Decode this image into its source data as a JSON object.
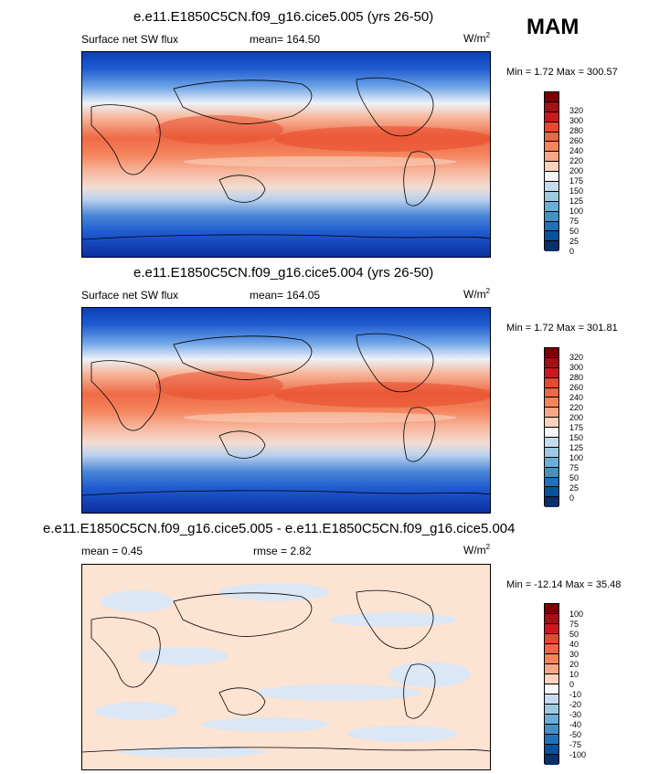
{
  "season": "MAM",
  "panels": [
    {
      "title": "e.e11.E1850C5CN.f09_g16.cice5.005 (yrs 26-50)",
      "variable": "Surface net SW flux",
      "stat": "mean= 164.50",
      "units": "W/m",
      "units_sup": "2",
      "minmax": "Min =   1.72 Max = 300.57",
      "colorbar_labels": [
        "320",
        "300",
        "280",
        "260",
        "240",
        "220",
        "200",
        "175",
        "150",
        "125",
        "100",
        "75",
        "50",
        "25",
        "0"
      ]
    },
    {
      "title": "e.e11.E1850C5CN.f09_g16.cice5.004 (yrs 26-50)",
      "variable": "Surface net SW flux",
      "stat": "mean= 164.05",
      "units": "W/m",
      "units_sup": "2",
      "minmax": "Min =   1.72 Max = 301.81",
      "colorbar_labels": [
        "320",
        "300",
        "280",
        "260",
        "240",
        "220",
        "200",
        "175",
        "150",
        "125",
        "100",
        "75",
        "50",
        "25",
        "0"
      ]
    },
    {
      "title": "e.e11.E1850C5CN.f09_g16.cice5.005 - e.e11.E1850C5CN.f09_g16.cice5.004",
      "stat": "mean =   0.45",
      "rmse": "rmse =   2.82",
      "units": "W/m",
      "units_sup": "2",
      "minmax": "Min = -12.14 Max =  35.48",
      "colorbar_labels": [
        "100",
        "75",
        "50",
        "40",
        "30",
        "20",
        "10",
        "0",
        "-10",
        "-20",
        "-30",
        "-40",
        "-50",
        "-75",
        "-100"
      ]
    }
  ],
  "colors": {
    "scale_top_to_bottom": [
      "#7f0000",
      "#a50f15",
      "#cb181d",
      "#e34a33",
      "#ef6548",
      "#f4845c",
      "#f7a787",
      "#fbd3bf",
      "#f7f7f7",
      "#c6dbef",
      "#9ecae1",
      "#6baed6",
      "#4292c6",
      "#2171b5",
      "#08519c",
      "#08306b"
    ],
    "coast": "#000000",
    "diff_pos": "#fde3d2",
    "diff_neg": "#dbe7f5"
  },
  "chart_data": [
    {
      "type": "heatmap",
      "title": "e.e11.E1850C5CN.f09_g16.cice5.005 (yrs 26-50)",
      "subtitle": "Surface net SW flux",
      "units": "W/m2",
      "mean": 164.5,
      "min": 1.72,
      "max": 300.57,
      "levels": [
        0,
        25,
        50,
        75,
        100,
        125,
        150,
        175,
        200,
        220,
        240,
        260,
        280,
        300,
        320
      ]
    },
    {
      "type": "heatmap",
      "title": "e.e11.E1850C5CN.f09_g16.cice5.004 (yrs 26-50)",
      "subtitle": "Surface net SW flux",
      "units": "W/m2",
      "mean": 164.05,
      "min": 1.72,
      "max": 301.81,
      "levels": [
        0,
        25,
        50,
        75,
        100,
        125,
        150,
        175,
        200,
        220,
        240,
        260,
        280,
        300,
        320
      ]
    },
    {
      "type": "heatmap",
      "title": "e.e11.E1850C5CN.f09_g16.cice5.005 - e.e11.E1850C5CN.f09_g16.cice5.004",
      "units": "W/m2",
      "mean": 0.45,
      "rmse": 2.82,
      "min": -12.14,
      "max": 35.48,
      "levels": [
        -100,
        -75,
        -50,
        -40,
        -30,
        -20,
        -10,
        0,
        10,
        20,
        30,
        40,
        50,
        75,
        100
      ]
    }
  ]
}
